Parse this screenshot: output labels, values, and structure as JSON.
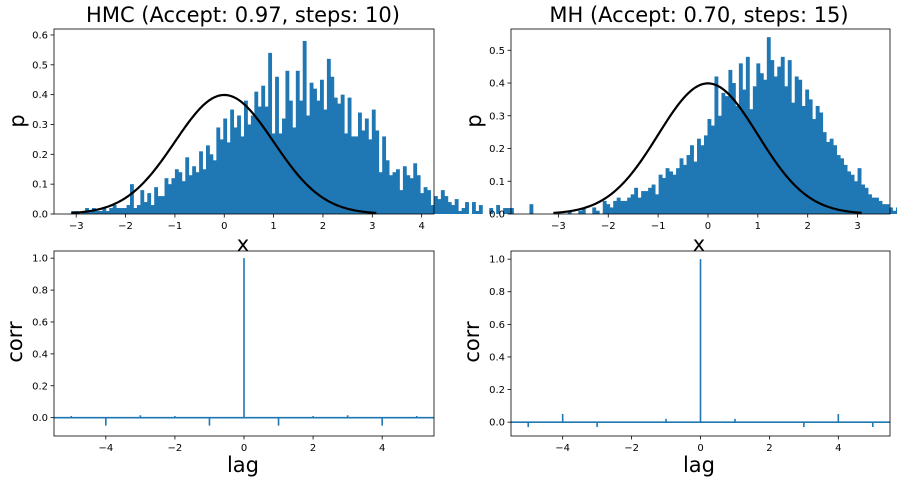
{
  "chart_data": [
    {
      "type": "bar",
      "subtype": "histogram",
      "title": "HMC (Accept: 0.97, steps: 10)",
      "xlabel": "x",
      "ylabel": "p",
      "xlim": [
        -3.45,
        4.25
      ],
      "ylim": [
        0,
        0.62
      ],
      "xticks": [
        -3,
        -2,
        -1,
        0,
        1,
        2,
        3,
        4
      ],
      "yticks": [
        0.0,
        0.1,
        0.2,
        0.3,
        0.4,
        0.5,
        0.6
      ],
      "xtick_labels": [
        "−3",
        "−2",
        "−1",
        "0",
        "1",
        "2",
        "3",
        "4"
      ],
      "ytick_labels": [
        "0.0",
        "0.1",
        "0.2",
        "0.3",
        "0.4",
        "0.5",
        "0.6"
      ],
      "bar_color": "#1f77b4",
      "curve_color": "#000000",
      "overlay": "standard normal density",
      "bins": {
        "start": -3.1,
        "width": 0.07,
        "heights": [
          0.01,
          0.01,
          0.0,
          0.01,
          0.02,
          0.01,
          0.02,
          0.01,
          0.01,
          0.02,
          0.01,
          0.02,
          0.03,
          0.02,
          0.02,
          0.02,
          0.03,
          0.1,
          0.02,
          0.03,
          0.08,
          0.04,
          0.07,
          0.03,
          0.09,
          0.06,
          0.06,
          0.12,
          0.1,
          0.12,
          0.15,
          0.14,
          0.11,
          0.19,
          0.13,
          0.16,
          0.14,
          0.21,
          0.15,
          0.23,
          0.2,
          0.18,
          0.29,
          0.25,
          0.32,
          0.24,
          0.35,
          0.29,
          0.33,
          0.26,
          0.38,
          0.3,
          0.33,
          0.41,
          0.36,
          0.43,
          0.36,
          0.54,
          0.27,
          0.46,
          0.27,
          0.32,
          0.48,
          0.38,
          0.29,
          0.48,
          0.38,
          0.58,
          0.33,
          0.44,
          0.42,
          0.38,
          0.45,
          0.35,
          0.52,
          0.46,
          0.39,
          0.37,
          0.4,
          0.27,
          0.39,
          0.26,
          0.26,
          0.34,
          0.28,
          0.32,
          0.25,
          0.35,
          0.28,
          0.14,
          0.26,
          0.18,
          0.13,
          0.14,
          0.15,
          0.08,
          0.16,
          0.13,
          0.12,
          0.17,
          0.13,
          0.07,
          0.09,
          0.08,
          0.03,
          0.06,
          0.05,
          0.08,
          0.06,
          0.04,
          0.03,
          0.05,
          0.01,
          0.02,
          0.04,
          0.0,
          0.04,
          0.01,
          0.03,
          0.0,
          0.0,
          0.02,
          0.0,
          0.03,
          0.0,
          0.02,
          0.02,
          0.02,
          0.0,
          0.0,
          0.0,
          0.0,
          0.0,
          0.0,
          0.0,
          0.0,
          0.0,
          0.0,
          0.0,
          0.0,
          0.0,
          0.0,
          0.0,
          0.0,
          0.0,
          0.0,
          0.0,
          0.0,
          0.0,
          0.0,
          0.0,
          0.0,
          0.0,
          0.0
        ]
      },
      "extra_bars": [
        {
          "x": 3.32,
          "value": 0.014
        },
        {
          "x": 3.85,
          "value": 0.014
        }
      ]
    },
    {
      "type": "bar",
      "subtype": "histogram",
      "title": "MH (Accept: 0.70, steps: 15)",
      "xlabel": "x",
      "ylabel": "p",
      "xlim": [
        -3.95,
        3.65
      ],
      "ylim": [
        0,
        0.565
      ],
      "xticks": [
        -3,
        -2,
        -1,
        0,
        1,
        2,
        3
      ],
      "yticks": [
        0.0,
        0.1,
        0.2,
        0.3,
        0.4,
        0.5
      ],
      "xtick_labels": [
        "−3",
        "−2",
        "−1",
        "0",
        "1",
        "2",
        "3"
      ],
      "ytick_labels": [
        "0.0",
        "0.1",
        "0.2",
        "0.3",
        "0.4",
        "0.5"
      ],
      "bar_color": "#1f77b4",
      "curve_color": "#000000",
      "overlay": "standard normal density",
      "bins": {
        "start": -2.95,
        "width": 0.07,
        "heights": [
          0.0,
          0.0,
          0.01,
          0.0,
          0.0,
          0.01,
          0.02,
          0.0,
          0.0,
          0.02,
          0.01,
          0.0,
          0.04,
          0.03,
          0.02,
          0.04,
          0.05,
          0.04,
          0.04,
          0.05,
          0.06,
          0.08,
          0.05,
          0.07,
          0.07,
          0.08,
          0.09,
          0.06,
          0.12,
          0.11,
          0.14,
          0.13,
          0.12,
          0.14,
          0.17,
          0.15,
          0.18,
          0.21,
          0.16,
          0.23,
          0.21,
          0.24,
          0.29,
          0.27,
          0.42,
          0.3,
          0.37,
          0.36,
          0.44,
          0.4,
          0.33,
          0.46,
          0.38,
          0.48,
          0.32,
          0.39,
          0.46,
          0.43,
          0.41,
          0.54,
          0.47,
          0.42,
          0.45,
          0.48,
          0.39,
          0.47,
          0.34,
          0.42,
          0.41,
          0.33,
          0.38,
          0.35,
          0.29,
          0.33,
          0.31,
          0.25,
          0.22,
          0.23,
          0.21,
          0.18,
          0.17,
          0.15,
          0.13,
          0.12,
          0.1,
          0.14,
          0.09,
          0.08,
          0.06,
          0.05,
          0.05,
          0.04,
          0.03,
          0.03,
          0.02,
          0.01,
          0.02,
          0.01,
          0.01,
          0.01,
          0.01,
          0.0,
          0.0,
          0.0,
          0.0,
          0.0,
          0.0,
          0.0,
          0.0,
          0.0,
          0.0,
          0.0,
          0.0,
          0.0,
          0.0,
          0.0,
          0.0,
          0.0,
          0.0,
          0.0,
          0.0,
          0.0,
          0.0,
          0.0,
          0.0,
          0.0,
          0.0,
          0.0,
          0.0,
          0.0,
          0.0,
          0.0,
          0.0,
          0.0,
          0.0,
          0.0,
          0.0,
          0.0,
          0.0,
          0.0,
          0.0,
          0.0,
          0.0,
          0.0,
          0.0,
          0.0,
          0.0,
          0.0,
          0.0,
          0.0
        ]
      },
      "extra_bars": [
        {
          "x": -3.58,
          "value": 0.03
        },
        {
          "x": 3.35,
          "value": 0.014
        },
        {
          "x": 3.42,
          "value": 0.014
        }
      ]
    },
    {
      "type": "bar",
      "subtype": "autocorrelation",
      "xlabel": "lag",
      "ylabel": "corr",
      "xlim": [
        -5.5,
        5.5
      ],
      "ylim": [
        -0.115,
        1.045
      ],
      "xticks": [
        -4,
        -2,
        0,
        2,
        4
      ],
      "yticks": [
        0.0,
        0.2,
        0.4,
        0.6,
        0.8,
        1.0
      ],
      "xtick_labels": [
        "−4",
        "−2",
        "0",
        "2",
        "4"
      ],
      "ytick_labels": [
        "0.0",
        "0.2",
        "0.4",
        "0.6",
        "0.8",
        "1.0"
      ],
      "line_color": "#1f77b4",
      "x": [
        -5,
        -4,
        -3,
        -2,
        -1,
        0,
        1,
        2,
        3,
        4,
        5
      ],
      "values": [
        0.01,
        -0.05,
        0.015,
        0.01,
        -0.05,
        1.0,
        -0.05,
        0.01,
        0.015,
        -0.05,
        0.01
      ]
    },
    {
      "type": "bar",
      "subtype": "autocorrelation",
      "xlabel": "lag",
      "ylabel": "corr",
      "xlim": [
        -5.5,
        5.5
      ],
      "ylim": [
        -0.085,
        1.05
      ],
      "xticks": [
        -4,
        -2,
        0,
        2,
        4
      ],
      "yticks": [
        0.0,
        0.2,
        0.4,
        0.6,
        0.8,
        1.0
      ],
      "xtick_labels": [
        "−4",
        "−2",
        "0",
        "2",
        "4"
      ],
      "ytick_labels": [
        "0.0",
        "0.2",
        "0.4",
        "0.6",
        "0.8",
        "1.0"
      ],
      "line_color": "#1f77b4",
      "x": [
        -5,
        -4,
        -3,
        -2,
        -1,
        0,
        1,
        2,
        3,
        4,
        5
      ],
      "values": [
        -0.03,
        0.05,
        -0.03,
        0.0,
        0.02,
        1.0,
        0.02,
        0.0,
        -0.03,
        0.05,
        -0.03
      ]
    }
  ]
}
